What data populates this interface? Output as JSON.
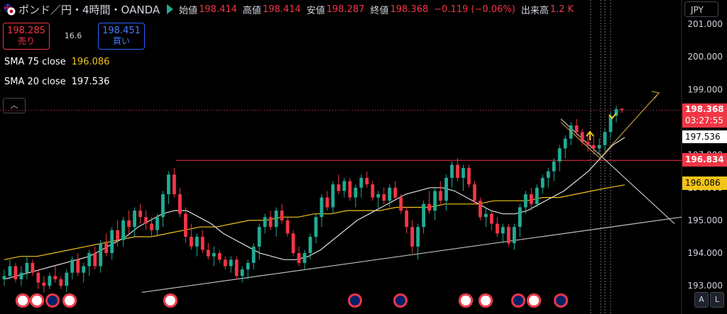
{
  "header": {
    "symbol": "ポンド／円・4時間・OANDA",
    "open_label": "始値",
    "open": "198.414",
    "high_label": "高値",
    "high": "198.414",
    "low_label": "安値",
    "low": "198.287",
    "close_label": "終値",
    "close": "198.368",
    "change": "−0.119 (−0.06%)",
    "volume_label": "出来高",
    "volume": "1.2 K"
  },
  "trade": {
    "sell_price": "198.285",
    "sell_label": "売り",
    "spread": "16.6",
    "buy_price": "198.451",
    "buy_label": "買い"
  },
  "indicators": {
    "sma75_label": "SMA 75 close",
    "sma75_value": "196.086",
    "sma20_label": "SMA 20 close",
    "sma20_value": "197.536"
  },
  "currency": "JPY",
  "price_labels": {
    "last": "198.368",
    "countdown": "03:27:55",
    "sma20": "197.536",
    "hline": "196.834",
    "sma75": "196.086"
  },
  "scale_buttons": {
    "auto": "A",
    "log": "L"
  },
  "colors": {
    "up": "#22ab94",
    "down": "#f23645",
    "sma75": "#f0c419",
    "sma20": "#e0e0e0",
    "trend": "#c0c0c0",
    "arrow": "#b8963a"
  },
  "chart_data": {
    "type": "candlestick",
    "y_axis_ticks": [
      201.0,
      200.0,
      199.0,
      198.0,
      197.0,
      196.0,
      195.0,
      194.0,
      193.0
    ],
    "ylim": [
      192.8,
      201.3
    ],
    "horizontal_line": 196.834,
    "last_price": 198.368,
    "candles": [
      [
        193.2,
        193.0,
        193.5,
        193.3
      ],
      [
        193.3,
        193.2,
        193.8,
        193.6
      ],
      [
        193.6,
        193.1,
        193.7,
        193.2
      ],
      [
        193.2,
        193.0,
        193.6,
        193.4
      ],
      [
        193.4,
        193.2,
        193.9,
        193.7
      ],
      [
        193.7,
        193.3,
        193.8,
        193.4
      ],
      [
        193.4,
        192.9,
        193.5,
        193.1
      ],
      [
        193.1,
        192.8,
        193.3,
        193.0
      ],
      [
        193.0,
        192.9,
        193.4,
        193.3
      ],
      [
        193.3,
        193.1,
        193.6,
        193.2
      ],
      [
        193.2,
        192.9,
        193.3,
        193.0
      ],
      [
        193.0,
        192.8,
        193.5,
        193.4
      ],
      [
        193.4,
        193.2,
        193.9,
        193.8
      ],
      [
        193.8,
        193.3,
        194.0,
        193.4
      ],
      [
        193.4,
        193.1,
        193.7,
        193.6
      ],
      [
        193.6,
        193.3,
        194.1,
        194.0
      ],
      [
        194.0,
        193.5,
        194.2,
        193.6
      ],
      [
        193.6,
        193.4,
        194.4,
        194.3
      ],
      [
        194.3,
        193.9,
        194.6,
        194.0
      ],
      [
        194.0,
        193.8,
        194.8,
        194.7
      ],
      [
        194.7,
        194.2,
        195.0,
        194.4
      ],
      [
        194.4,
        194.2,
        195.1,
        195.0
      ],
      [
        195.0,
        194.6,
        195.3,
        194.8
      ],
      [
        194.8,
        194.5,
        195.4,
        195.3
      ],
      [
        195.3,
        194.9,
        195.5,
        195.1
      ],
      [
        195.1,
        194.7,
        195.3,
        194.9
      ],
      [
        194.9,
        194.5,
        195.1,
        194.7
      ],
      [
        194.7,
        194.5,
        195.2,
        195.1
      ],
      [
        195.1,
        194.8,
        195.9,
        195.8
      ],
      [
        195.8,
        195.5,
        196.5,
        196.4
      ],
      [
        196.4,
        195.7,
        196.6,
        195.8
      ],
      [
        195.8,
        195.1,
        196.0,
        195.2
      ],
      [
        195.2,
        194.3,
        195.4,
        194.5
      ],
      [
        194.5,
        194.1,
        194.9,
        194.2
      ],
      [
        194.2,
        193.9,
        194.6,
        194.5
      ],
      [
        194.5,
        194.0,
        194.7,
        194.1
      ],
      [
        194.1,
        193.8,
        194.3,
        193.9
      ],
      [
        193.9,
        193.6,
        194.2,
        194.0
      ],
      [
        194.0,
        193.7,
        194.1,
        193.8
      ],
      [
        193.8,
        193.5,
        193.9,
        193.6
      ],
      [
        193.6,
        193.4,
        193.9,
        193.8
      ],
      [
        193.8,
        193.2,
        193.9,
        193.3
      ],
      [
        193.3,
        193.1,
        193.6,
        193.5
      ],
      [
        193.5,
        193.2,
        193.8,
        193.7
      ],
      [
        193.7,
        193.5,
        194.3,
        194.2
      ],
      [
        194.2,
        193.8,
        194.9,
        194.8
      ],
      [
        194.8,
        194.6,
        195.2,
        195.1
      ],
      [
        195.1,
        194.7,
        195.3,
        194.8
      ],
      [
        194.8,
        194.5,
        195.4,
        195.3
      ],
      [
        195.3,
        194.9,
        195.5,
        195.0
      ],
      [
        195.0,
        194.5,
        195.1,
        194.6
      ],
      [
        194.6,
        193.9,
        194.7,
        194.0
      ],
      [
        194.0,
        193.6,
        194.2,
        193.7
      ],
      [
        193.7,
        193.5,
        194.1,
        194.0
      ],
      [
        194.0,
        193.8,
        194.6,
        194.5
      ],
      [
        194.5,
        194.3,
        195.2,
        195.1
      ],
      [
        195.1,
        194.8,
        195.8,
        195.7
      ],
      [
        195.7,
        195.3,
        195.9,
        195.4
      ],
      [
        195.4,
        195.2,
        196.2,
        196.1
      ],
      [
        196.1,
        195.8,
        196.4,
        195.9
      ],
      [
        195.9,
        195.7,
        196.3,
        196.2
      ],
      [
        196.2,
        195.6,
        196.3,
        195.7
      ],
      [
        195.7,
        195.4,
        196.1,
        196.0
      ],
      [
        196.0,
        195.7,
        196.4,
        196.3
      ],
      [
        196.3,
        196.0,
        196.5,
        196.1
      ],
      [
        196.1,
        195.6,
        196.2,
        195.7
      ],
      [
        195.7,
        195.3,
        195.9,
        195.8
      ],
      [
        195.8,
        195.5,
        196.0,
        195.6
      ],
      [
        195.6,
        195.4,
        196.1,
        196.0
      ],
      [
        196.0,
        195.6,
        196.2,
        195.7
      ],
      [
        195.7,
        195.2,
        195.8,
        195.3
      ],
      [
        195.3,
        194.6,
        195.4,
        194.8
      ],
      [
        194.8,
        194.0,
        195.0,
        194.2
      ],
      [
        194.2,
        193.8,
        194.9,
        194.8
      ],
      [
        194.8,
        194.6,
        195.6,
        195.5
      ],
      [
        195.5,
        195.2,
        195.9,
        195.3
      ],
      [
        195.3,
        195.0,
        196.0,
        195.9
      ],
      [
        195.9,
        195.5,
        196.2,
        195.6
      ],
      [
        195.6,
        195.3,
        196.4,
        196.3
      ],
      [
        196.3,
        196.0,
        196.8,
        196.7
      ],
      [
        196.7,
        196.2,
        196.9,
        196.3
      ],
      [
        196.3,
        195.9,
        196.7,
        196.6
      ],
      [
        196.6,
        196.0,
        196.7,
        196.1
      ],
      [
        196.1,
        195.5,
        196.2,
        195.6
      ],
      [
        195.6,
        195.0,
        195.7,
        195.1
      ],
      [
        195.1,
        194.8,
        195.4,
        195.2
      ],
      [
        195.2,
        194.7,
        195.3,
        194.9
      ],
      [
        194.9,
        194.5,
        195.1,
        194.6
      ],
      [
        194.6,
        194.3,
        194.9,
        194.8
      ],
      [
        194.8,
        194.2,
        194.9,
        194.3
      ],
      [
        194.3,
        194.1,
        194.9,
        194.8
      ],
      [
        194.8,
        194.5,
        195.5,
        195.4
      ],
      [
        195.4,
        195.2,
        195.9,
        195.8
      ],
      [
        195.8,
        195.3,
        196.0,
        195.5
      ],
      [
        195.5,
        195.4,
        196.1,
        196.0
      ],
      [
        196.0,
        195.8,
        196.4,
        196.3
      ],
      [
        196.3,
        196.0,
        196.6,
        196.5
      ],
      [
        196.5,
        196.2,
        196.9,
        196.8
      ],
      [
        196.8,
        196.5,
        197.3,
        197.2
      ],
      [
        197.2,
        196.9,
        197.6,
        197.5
      ],
      [
        197.5,
        197.3,
        198.0,
        197.9
      ],
      [
        197.9,
        197.6,
        198.1,
        197.7
      ],
      [
        197.7,
        197.3,
        197.8,
        197.4
      ],
      [
        197.4,
        197.1,
        197.7,
        197.3
      ],
      [
        197.3,
        197.0,
        197.6,
        197.2
      ],
      [
        197.2,
        197.0,
        197.5,
        197.3
      ],
      [
        197.3,
        197.1,
        197.8,
        197.7
      ],
      [
        197.7,
        197.5,
        198.3,
        198.2
      ],
      [
        198.2,
        198.0,
        198.5,
        198.4
      ],
      [
        198.414,
        198.287,
        198.414,
        198.368
      ]
    ],
    "sma20": [
      193.2,
      193.3,
      193.4,
      193.5,
      193.6,
      193.7,
      193.8,
      193.9,
      194.1,
      194.3,
      194.5,
      194.8,
      195.0,
      195.2,
      195.3,
      195.3,
      195.1,
      194.9,
      194.6,
      194.4,
      194.2,
      194.0,
      193.9,
      193.8,
      193.8,
      193.9,
      194.1,
      194.4,
      194.7,
      195.0,
      195.2,
      195.4,
      195.6,
      195.8,
      195.9,
      196.0,
      196.0,
      195.9,
      195.7,
      195.5,
      195.3,
      195.2,
      195.2,
      195.3,
      195.5,
      195.7,
      195.9,
      196.2,
      196.5,
      196.9,
      197.3,
      197.536
    ],
    "sma75": [
      193.8,
      193.9,
      193.9,
      194.0,
      194.1,
      194.2,
      194.3,
      194.4,
      194.5,
      194.5,
      194.6,
      194.7,
      194.8,
      194.8,
      194.9,
      195.0,
      195.0,
      195.1,
      195.1,
      195.2,
      195.2,
      195.3,
      195.3,
      195.3,
      195.4,
      195.4,
      195.4,
      195.5,
      195.5,
      195.5,
      195.6,
      195.6,
      195.6,
      195.7,
      195.7,
      195.8,
      195.9,
      196.0,
      196.086
    ]
  }
}
